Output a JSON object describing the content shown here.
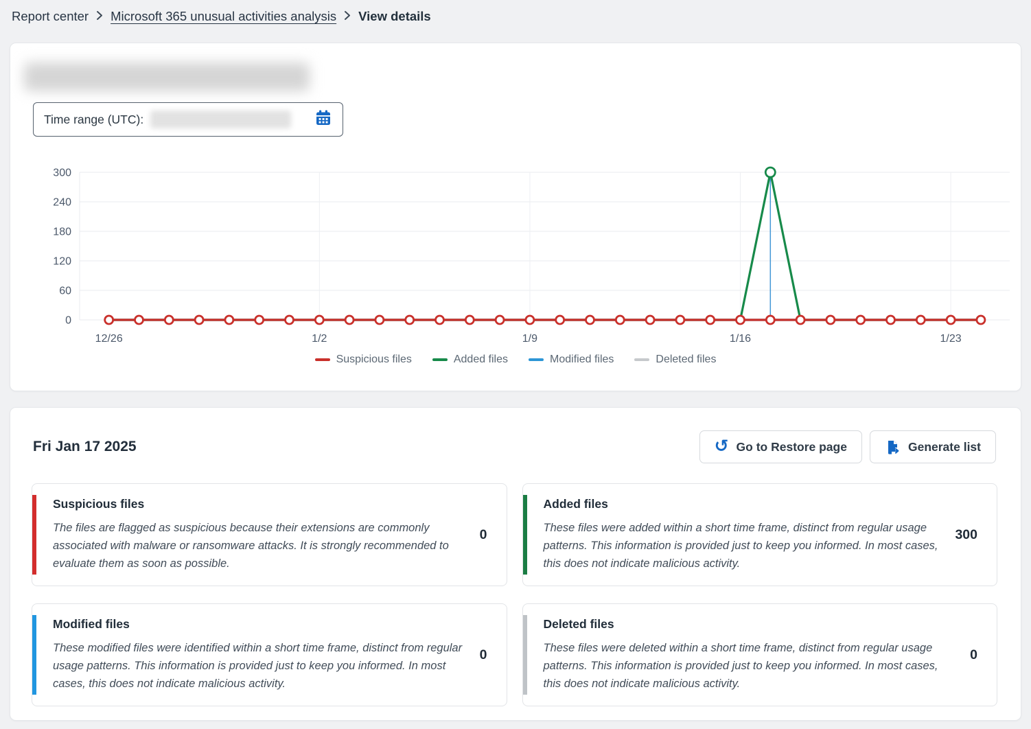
{
  "breadcrumb": {
    "items": [
      {
        "label": "Report center"
      },
      {
        "label": "Microsoft 365 unusual activities analysis"
      },
      {
        "label": "View details"
      }
    ]
  },
  "filters": {
    "time_range_label": "Time range (UTC):",
    "time_range_value_redacted": true
  },
  "icons": {
    "restore_glyph": "↺"
  },
  "chart_data": {
    "type": "line",
    "title": "",
    "xlabel": "",
    "ylabel": "",
    "ylim": [
      0,
      300
    ],
    "yticks": [
      0,
      60,
      120,
      180,
      240,
      300
    ],
    "grid": true,
    "legend_position": "bottom",
    "x": [
      "12/26",
      "12/27",
      "12/28",
      "12/29",
      "12/30",
      "12/31",
      "1/1",
      "1/2",
      "1/3",
      "1/4",
      "1/5",
      "1/6",
      "1/7",
      "1/8",
      "1/9",
      "1/10",
      "1/11",
      "1/12",
      "1/13",
      "1/14",
      "1/15",
      "1/16",
      "1/17",
      "1/18",
      "1/19",
      "1/20",
      "1/21",
      "1/22",
      "1/23",
      "1/24"
    ],
    "x_tick_labels": [
      "12/26",
      "1/2",
      "1/9",
      "1/16",
      "1/23"
    ],
    "x_tick_indices": [
      0,
      7,
      14,
      21,
      28
    ],
    "selected_index": 22,
    "selected_date": "Fri Jan 17 2025",
    "series": [
      {
        "name": "Suspicious files",
        "color": "#c9302b",
        "values": [
          0,
          0,
          0,
          0,
          0,
          0,
          0,
          0,
          0,
          0,
          0,
          0,
          0,
          0,
          0,
          0,
          0,
          0,
          0,
          0,
          0,
          0,
          0,
          0,
          0,
          0,
          0,
          0,
          0,
          0
        ]
      },
      {
        "name": "Added files",
        "color": "#178a4a",
        "values": [
          0,
          0,
          0,
          0,
          0,
          0,
          0,
          0,
          0,
          0,
          0,
          0,
          0,
          0,
          0,
          0,
          0,
          0,
          0,
          0,
          0,
          0,
          300,
          0,
          0,
          0,
          0,
          0,
          0,
          0
        ]
      },
      {
        "name": "Modified files",
        "color": "#2d96d6",
        "values": [
          0,
          0,
          0,
          0,
          0,
          0,
          0,
          0,
          0,
          0,
          0,
          0,
          0,
          0,
          0,
          0,
          0,
          0,
          0,
          0,
          0,
          0,
          0,
          0,
          0,
          0,
          0,
          0,
          0,
          0
        ]
      },
      {
        "name": "Deleted files",
        "color": "#c6c9cc",
        "values": [
          0,
          0,
          0,
          0,
          0,
          0,
          0,
          0,
          0,
          0,
          0,
          0,
          0,
          0,
          0,
          0,
          0,
          0,
          0,
          0,
          0,
          0,
          0,
          0,
          0,
          0,
          0,
          0,
          0,
          0
        ]
      }
    ],
    "selection_line_color": "#4498d6"
  },
  "summary": {
    "date_heading": "Fri Jan 17 2025",
    "buttons": [
      {
        "label": "Go to Restore page"
      },
      {
        "label": "Generate list"
      }
    ],
    "cards": [
      {
        "title": "Suspicious files",
        "accent": "#d32d2d",
        "value": "0",
        "description": "The files are flagged as suspicious because their extensions are commonly associated with malware or ransomware attacks. It is strongly recommended to evaluate them as soon as possible."
      },
      {
        "title": "Added files",
        "accent": "#1b7d44",
        "value": "300",
        "description": "These files were added within a short time frame, distinct from regular usage patterns. This information is provided just to keep you informed. In most cases, this does not indicate malicious activity."
      },
      {
        "title": "Modified files",
        "accent": "#2196e0",
        "value": "0",
        "description": "These modified files were identified within a short time frame, distinct from regular usage patterns. This information is provided just to keep you informed. In most cases, this does not indicate malicious activity."
      },
      {
        "title": "Deleted files",
        "accent": "#bfc3c7",
        "value": "0",
        "description": "These files were deleted within a short time frame, distinct from regular usage patterns. This information is provided just to keep you informed. In most cases, this does not indicate malicious activity."
      }
    ]
  }
}
